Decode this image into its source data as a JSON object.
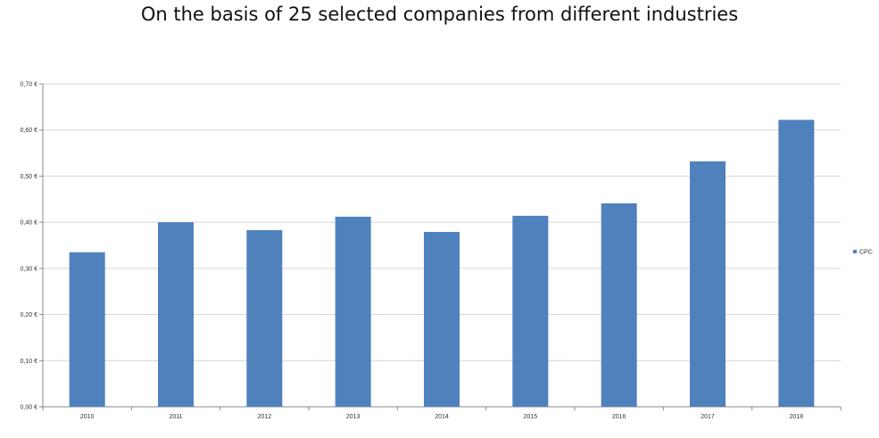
{
  "chart_data": {
    "type": "bar",
    "title": "On the basis of 25 selected companies from different industries",
    "categories": [
      "2010",
      "2011",
      "2012",
      "2013",
      "2014",
      "2015",
      "2016",
      "2017",
      "2018"
    ],
    "series": [
      {
        "name": "CPC",
        "color": "#4f81bd",
        "values": [
          0.335,
          0.4,
          0.383,
          0.412,
          0.379,
          0.414,
          0.441,
          0.532,
          0.622
        ]
      }
    ],
    "ylim": [
      0,
      0.7
    ],
    "yticks": [
      0,
      0.1,
      0.2,
      0.3,
      0.4,
      0.5,
      0.6,
      0.7
    ],
    "ytick_labels": [
      "0,00 €",
      "0,10 €",
      "0,20 €",
      "0,30 €",
      "0,40 €",
      "0,50 €",
      "0,60 €",
      "0,70 €"
    ],
    "grid": true,
    "legend_position": "right"
  }
}
